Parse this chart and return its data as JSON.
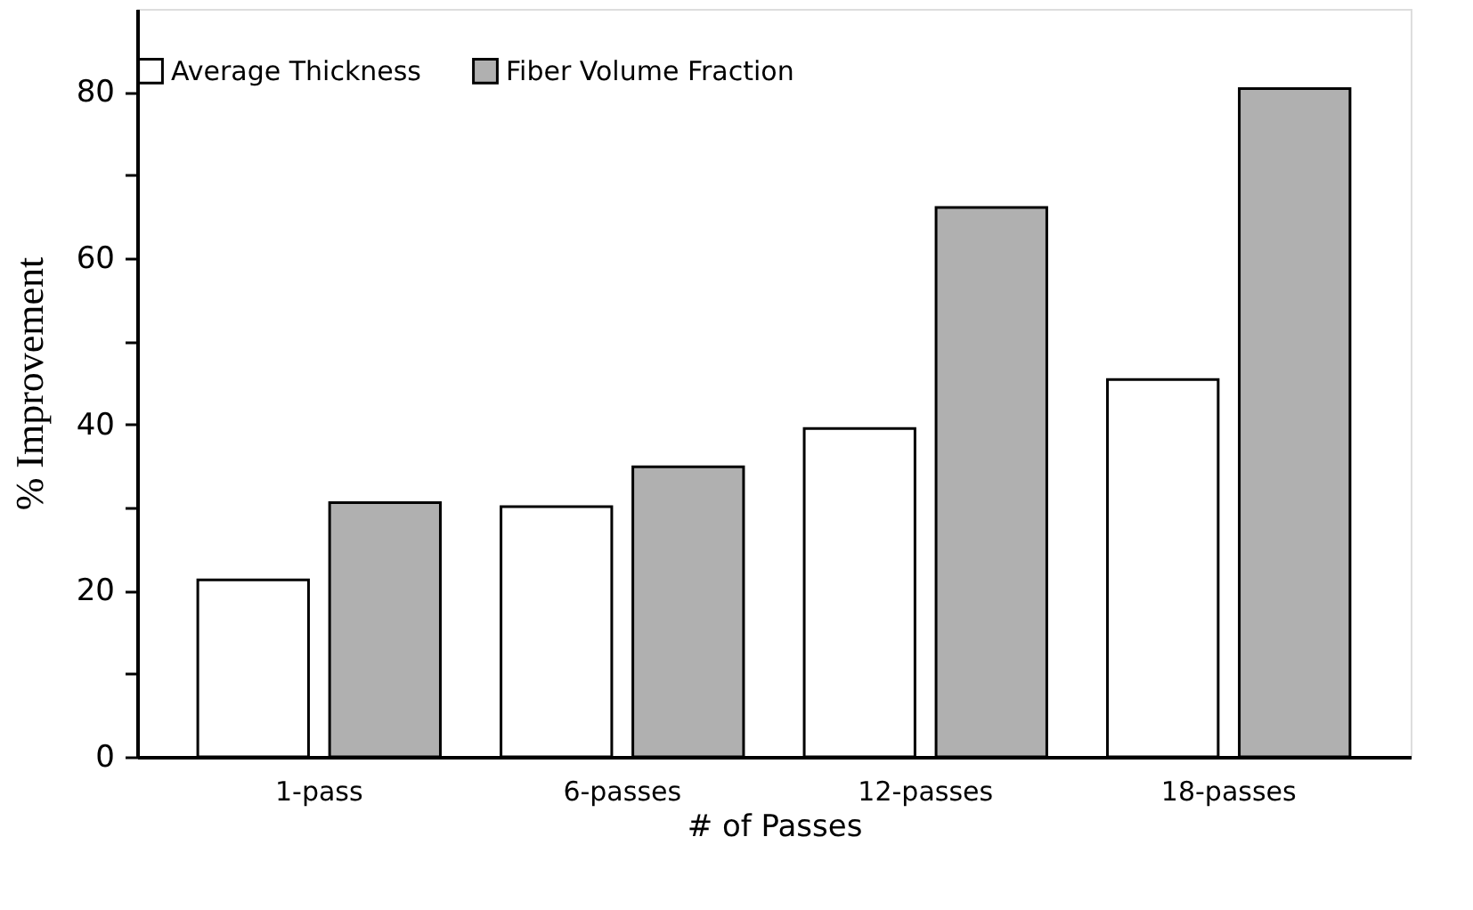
{
  "chart_data": {
    "type": "bar",
    "xlabel": "# of Passes",
    "ylabel": "% Improvement",
    "categories": [
      "1-pass",
      "6-passes",
      "12-passes",
      "18-passes"
    ],
    "series": [
      {
        "name": "Average Thickness",
        "color": "#ffffff",
        "values": [
          21.3,
          30.1,
          39.5,
          45.4
        ]
      },
      {
        "name": "Fiber Volume Fraction",
        "color": "#b0b0b0",
        "values": [
          30.6,
          34.9,
          66.1,
          80.4
        ]
      }
    ],
    "ylim": [
      0,
      90
    ],
    "yticks": [
      0,
      {
        "value": 10,
        "label": null
      },
      20,
      {
        "value": 30,
        "label": null
      },
      40,
      {
        "value": 50,
        "label": null
      },
      60,
      {
        "value": 70,
        "label": null
      },
      80
    ],
    "grid": false,
    "legend": "top"
  }
}
